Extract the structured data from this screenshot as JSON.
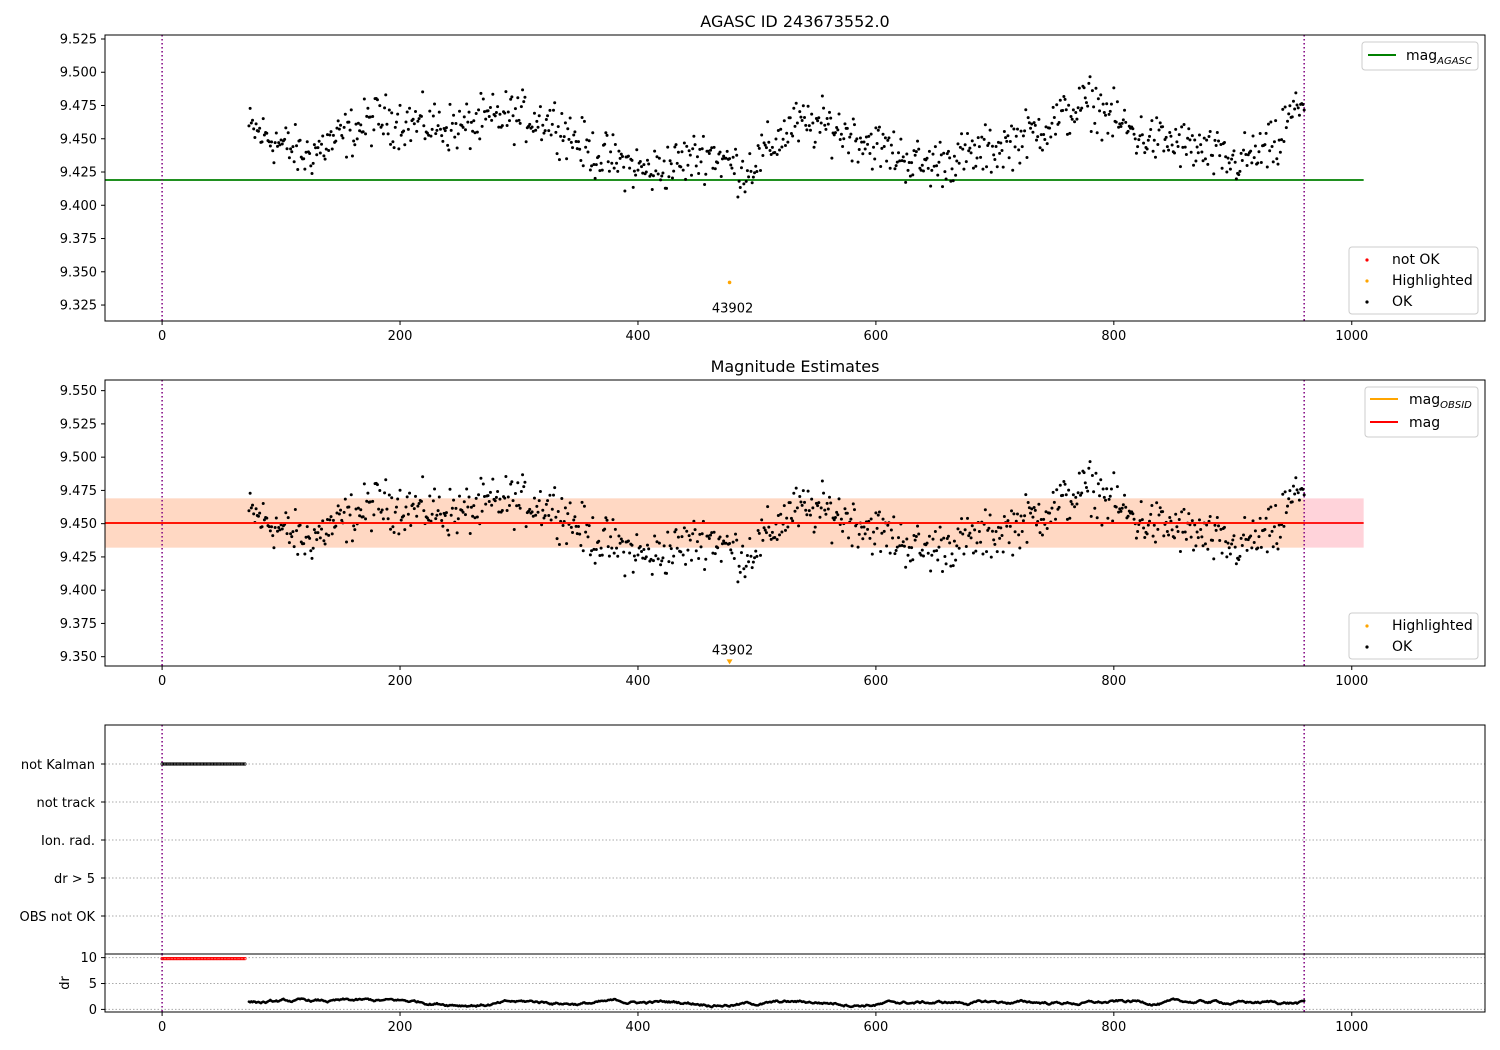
{
  "chart_data": [
    {
      "panel": "agasc",
      "type": "scatter",
      "title": "AGASC ID 243673552.0",
      "xlim": [
        -48,
        1112
      ],
      "ylim": [
        9.313,
        9.528
      ],
      "xticks": [
        "0",
        "200",
        "400",
        "600",
        "800",
        "1000"
      ],
      "yticks": [
        "9.325",
        "9.350",
        "9.375",
        "9.400",
        "9.425",
        "9.450",
        "9.475",
        "9.500",
        "9.525"
      ],
      "vlines": [
        0,
        960
      ],
      "hline": {
        "name": "mag",
        "subscript": "AGASC",
        "y": 9.419,
        "x_range": [
          -48,
          1010
        ],
        "color": "#008000"
      },
      "legend_upper": [
        {
          "name": "mag",
          "subscript": "AGASC",
          "color": "#008000",
          "marker": "line"
        }
      ],
      "legend_lower": [
        {
          "name": "not OK",
          "color": "#ff0000",
          "marker": "dot"
        },
        {
          "name": "Highlighted",
          "color": "#ffa500",
          "marker": "dot"
        },
        {
          "name": "OK",
          "color": "#000000",
          "marker": "dot"
        }
      ],
      "highlighted": [
        {
          "x": 477,
          "y": 9.342,
          "label": "43902"
        }
      ],
      "ok_range": [
        73,
        960
      ]
    },
    {
      "panel": "estimates",
      "type": "scatter",
      "title": "Magnitude Estimates",
      "xlim": [
        -48,
        1112
      ],
      "ylim": [
        9.343,
        9.558
      ],
      "xticks": [
        "0",
        "200",
        "400",
        "600",
        "800",
        "1000"
      ],
      "yticks": [
        "9.350",
        "9.375",
        "9.400",
        "9.425",
        "9.450",
        "9.475",
        "9.500",
        "9.525",
        "9.550"
      ],
      "vlines": [
        0,
        960
      ],
      "bands": [
        {
          "name": "mag_band",
          "x_range": [
            -48,
            1010
          ],
          "y_range": [
            9.432,
            9.469
          ],
          "color": "#ffc0cb"
        },
        {
          "name": "mag_obsid_band",
          "x_range": [
            -48,
            960
          ],
          "y_range": [
            9.432,
            9.469
          ],
          "color": "#ffdab9"
        }
      ],
      "hlines": [
        {
          "name": "mag",
          "subscript": "OBSID",
          "y": 9.4505,
          "x_range": [
            -48,
            960
          ],
          "color": "#ffa500"
        },
        {
          "name": "mag",
          "y": 9.4505,
          "x_range": [
            -48,
            1010
          ],
          "color": "#ff0000"
        }
      ],
      "legend_upper": [
        {
          "name": "mag",
          "subscript": "OBSID",
          "color": "#ffa500",
          "marker": "line"
        },
        {
          "name": "mag",
          "color": "#ff0000",
          "marker": "line"
        }
      ],
      "legend_lower": [
        {
          "name": "Highlighted",
          "color": "#ffa500",
          "marker": "dot"
        },
        {
          "name": "OK",
          "color": "#000000",
          "marker": "dot"
        }
      ],
      "highlighted": [
        {
          "x": 477,
          "y": 9.3465,
          "label": "43902",
          "marker": "triangle-down"
        }
      ],
      "ok_range": [
        73,
        960
      ]
    },
    {
      "panel": "flags",
      "type": "scatter",
      "xlim": [
        -48,
        1112
      ],
      "categories": [
        "not Kalman",
        "not track",
        "Ion. rad.",
        "dr > 5",
        "OBS not OK"
      ],
      "vlines": [
        0,
        960
      ],
      "flag_runs": [
        {
          "category": "not Kalman",
          "x_range": [
            0,
            70
          ]
        }
      ]
    },
    {
      "panel": "dr",
      "type": "scatter",
      "ylabel": "dr",
      "xlim": [
        -48,
        1112
      ],
      "ylim": [
        -0.5,
        10.7
      ],
      "xticks": [
        "0",
        "200",
        "400",
        "600",
        "800",
        "1000"
      ],
      "yticks": [
        "0",
        "5",
        "10"
      ],
      "vlines": [
        0,
        960
      ],
      "clipped": {
        "x_range": [
          0,
          70
        ],
        "y": 9.8,
        "color": "#ff0000"
      },
      "ok_range": [
        73,
        960
      ]
    }
  ]
}
